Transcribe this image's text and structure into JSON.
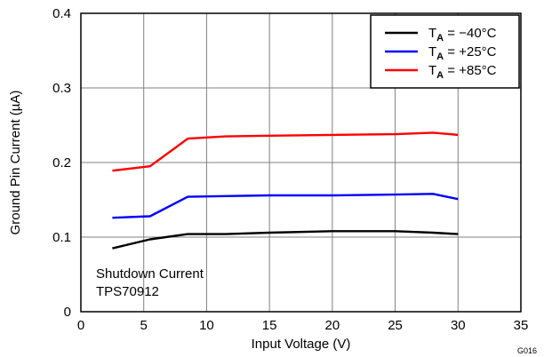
{
  "chart_data": {
    "type": "line",
    "title": "",
    "xlabel": "Input Voltage (V)",
    "ylabel": "Ground Pin Current (µA)",
    "xlim": [
      0,
      35
    ],
    "ylim": [
      0,
      0.4
    ],
    "x_ticks": [
      "0",
      "5",
      "10",
      "15",
      "20",
      "25",
      "30",
      "35"
    ],
    "y_ticks": [
      "0",
      "0.1",
      "0.2",
      "0.3",
      "0.4"
    ],
    "grid": true,
    "legend_position": "top-right",
    "series": [
      {
        "name_main": "T",
        "name_sub": "A",
        "name_rest": " = −40°C",
        "color": "#000000",
        "points": [
          [
            2.5,
            0.085
          ],
          [
            5.5,
            0.097
          ],
          [
            8.5,
            0.104
          ],
          [
            11.5,
            0.104
          ],
          [
            15,
            0.106
          ],
          [
            20,
            0.108
          ],
          [
            25,
            0.108
          ],
          [
            28,
            0.106
          ],
          [
            30,
            0.104
          ]
        ]
      },
      {
        "name_main": "T",
        "name_sub": "A",
        "name_rest": " = +25°C",
        "color": "#0000ff",
        "points": [
          [
            2.5,
            0.126
          ],
          [
            5.5,
            0.128
          ],
          [
            8.5,
            0.154
          ],
          [
            11.5,
            0.155
          ],
          [
            15,
            0.156
          ],
          [
            20,
            0.156
          ],
          [
            25,
            0.157
          ],
          [
            28,
            0.158
          ],
          [
            30,
            0.151
          ]
        ]
      },
      {
        "name_main": "T",
        "name_sub": "A",
        "name_rest": " = +85°C",
        "color": "#ff0000",
        "points": [
          [
            2.5,
            0.189
          ],
          [
            5.5,
            0.195
          ],
          [
            8.5,
            0.232
          ],
          [
            11.5,
            0.235
          ],
          [
            15,
            0.236
          ],
          [
            20,
            0.237
          ],
          [
            25,
            0.238
          ],
          [
            28,
            0.24
          ],
          [
            30,
            0.237
          ]
        ]
      }
    ],
    "annotation_lines": [
      "Shutdown Current",
      "TPS70912"
    ],
    "figure_code": "G016"
  }
}
